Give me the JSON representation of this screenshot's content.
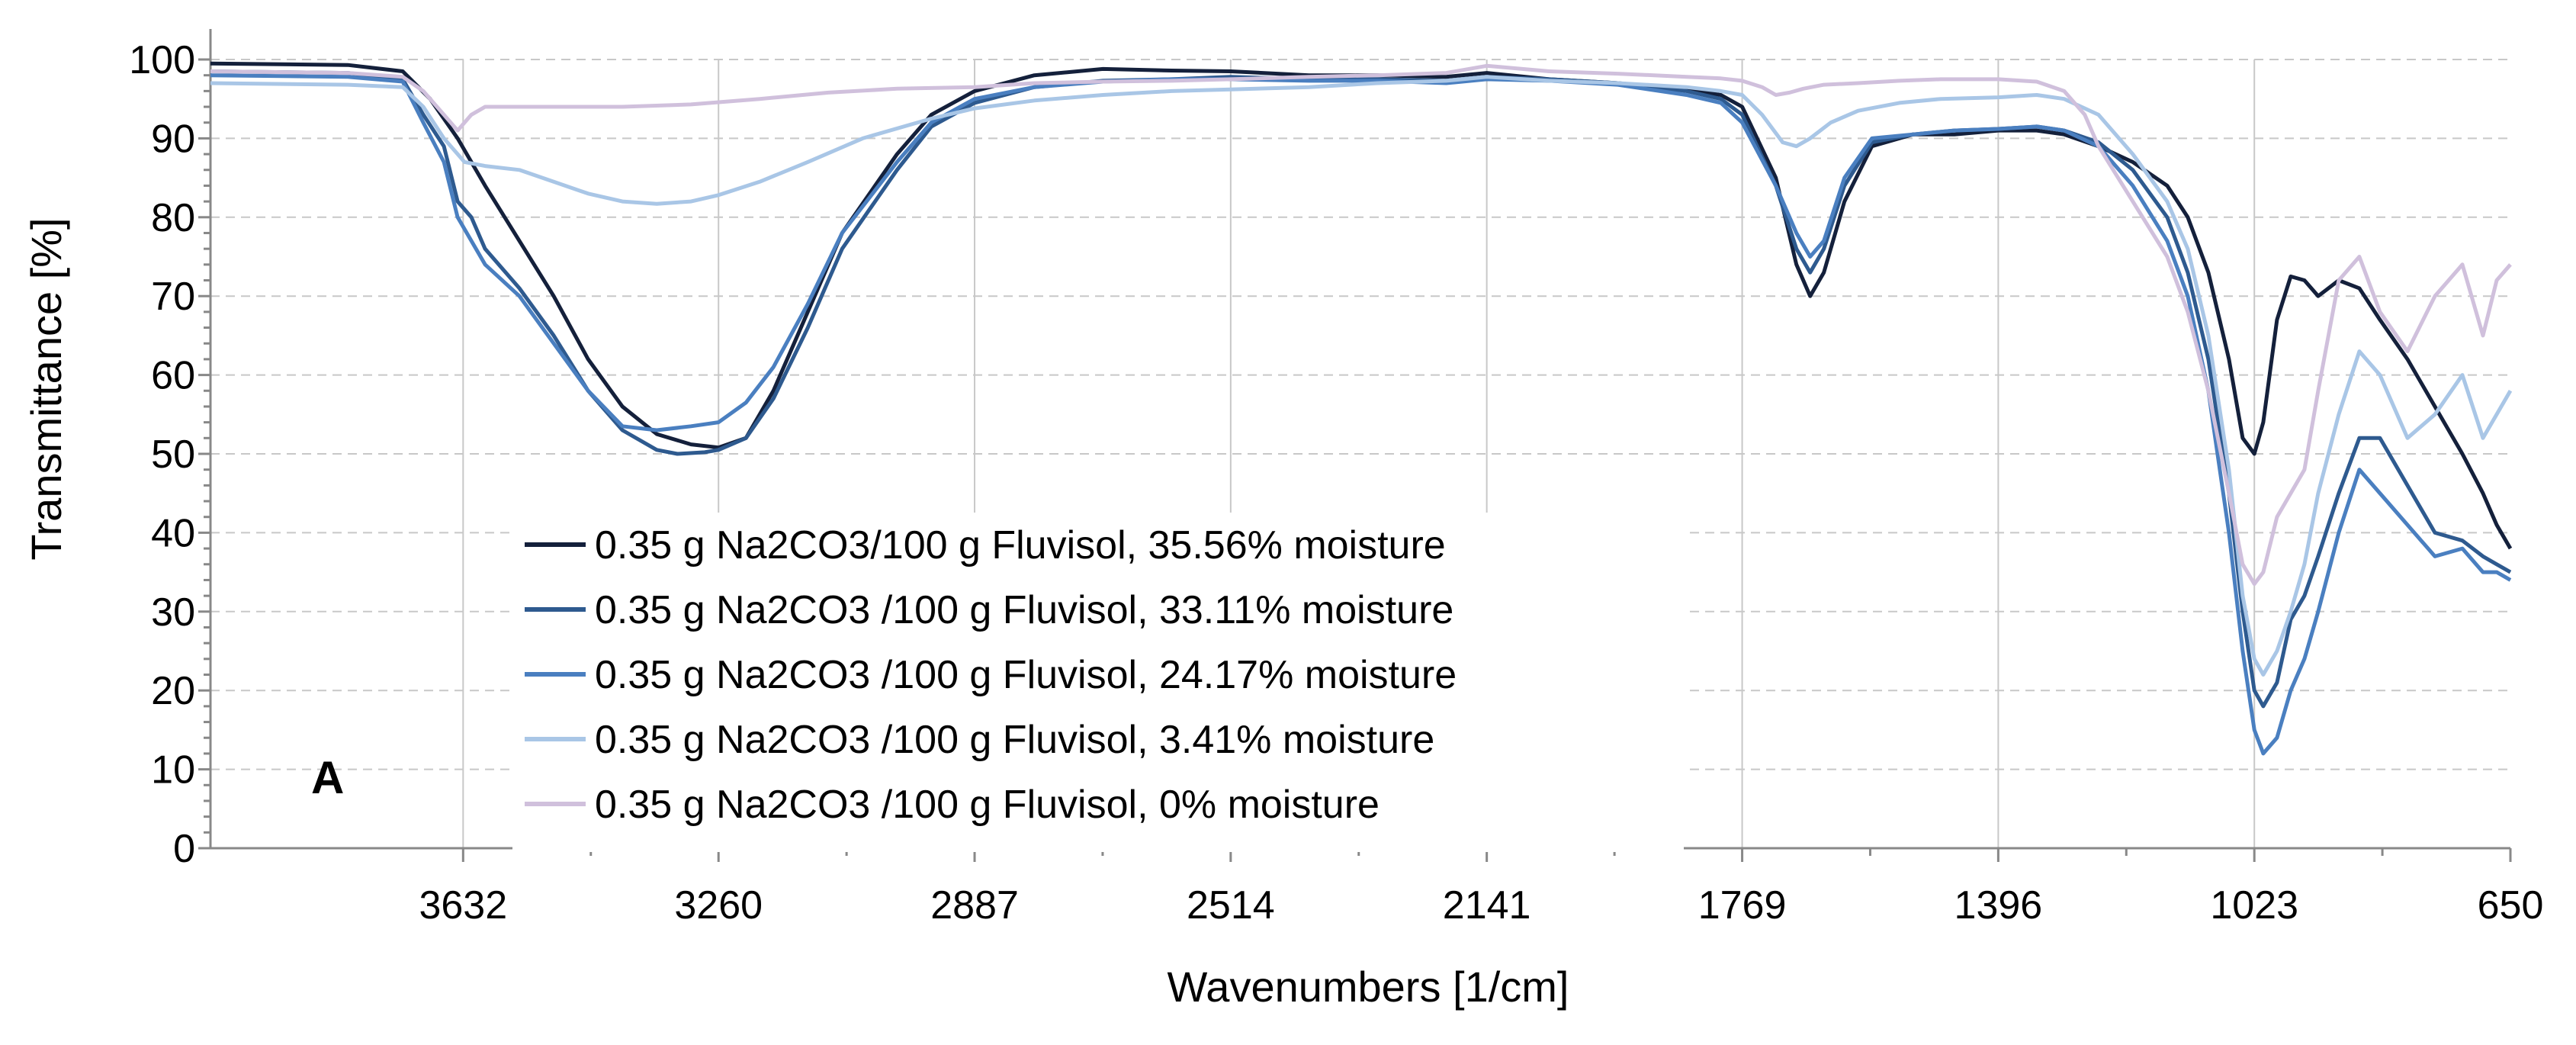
{
  "chart_data": {
    "type": "line",
    "panel_label": "A",
    "xlabel": "Wavenumbers [1/cm]",
    "ylabel": "Transmittance [%]",
    "xlim": [
      4000,
      650
    ],
    "x_reversed": true,
    "ylim": [
      0,
      100
    ],
    "x_ticks": [
      3632,
      3260,
      2887,
      2514,
      2141,
      1769,
      1396,
      1023,
      650
    ],
    "x_tick_labels": [
      "3632",
      "3260",
      "2887",
      "2514",
      "2141",
      "1769",
      "1396",
      "1023",
      "650"
    ],
    "y_ticks": [
      0,
      10,
      20,
      30,
      40,
      50,
      60,
      70,
      80,
      90,
      100
    ],
    "y_tick_labels": [
      "0",
      "10",
      "20",
      "30",
      "40",
      "50",
      "60",
      "70",
      "80",
      "90",
      "100"
    ],
    "grid": true,
    "legend_position": "center-left",
    "series": [
      {
        "name": "0.35 g Na2CO3/100 g Fluvisol, 35.56% moisture",
        "color": "#14203b",
        "x": [
          4000,
          3800,
          3720,
          3680,
          3640,
          3600,
          3550,
          3500,
          3450,
          3400,
          3350,
          3300,
          3260,
          3220,
          3180,
          3130,
          3080,
          3000,
          2950,
          2887,
          2800,
          2700,
          2600,
          2514,
          2400,
          2300,
          2200,
          2141,
          2050,
          1950,
          1850,
          1800,
          1769,
          1720,
          1690,
          1670,
          1650,
          1620,
          1580,
          1520,
          1460,
          1396,
          1340,
          1300,
          1250,
          1200,
          1150,
          1120,
          1090,
          1060,
          1040,
          1023,
          1010,
          990,
          970,
          950,
          930,
          900,
          870,
          840,
          800,
          760,
          720,
          690,
          670,
          650
        ],
        "y": [
          99.5,
          99.3,
          98.5,
          95,
          90,
          84,
          77,
          70,
          62,
          56,
          52.5,
          51.2,
          50.8,
          52,
          58,
          68,
          78,
          88,
          93,
          96,
          98,
          98.8,
          98.6,
          98.5,
          98,
          98,
          97.8,
          98.3,
          97.5,
          97,
          96.2,
          95.5,
          94,
          85,
          74,
          70,
          73,
          82,
          89,
          90.5,
          90.5,
          91,
          91,
          90.5,
          89,
          87,
          84,
          80,
          73,
          62,
          52,
          50,
          54,
          67,
          72.5,
          72,
          70,
          72,
          71,
          67,
          62,
          56,
          50,
          45,
          41,
          38
        ]
      },
      {
        "name": "0.35 g Na2CO3 /100 g Fluvisol, 33.11% moisture",
        "color": "#2e5a8f",
        "x": [
          4000,
          3800,
          3720,
          3690,
          3660,
          3640,
          3620,
          3600,
          3550,
          3500,
          3450,
          3400,
          3350,
          3320,
          3280,
          3260,
          3220,
          3180,
          3130,
          3080,
          3000,
          2950,
          2887,
          2800,
          2700,
          2600,
          2514,
          2400,
          2300,
          2200,
          2141,
          2050,
          1950,
          1850,
          1800,
          1769,
          1720,
          1690,
          1670,
          1650,
          1620,
          1580,
          1520,
          1460,
          1396,
          1340,
          1300,
          1250,
          1200,
          1150,
          1120,
          1090,
          1060,
          1040,
          1023,
          1010,
          990,
          970,
          950,
          930,
          900,
          870,
          840,
          800,
          760,
          720,
          690,
          670,
          650
        ],
        "y": [
          98.5,
          98.3,
          97.5,
          93,
          89,
          82,
          80,
          76,
          71,
          65,
          58,
          53,
          50.5,
          50,
          50.2,
          50.5,
          52,
          57,
          66,
          76,
          86,
          91.5,
          94.5,
          96.5,
          97.3,
          97.5,
          97.8,
          97.5,
          97.5,
          97.3,
          97.8,
          97.5,
          97,
          96,
          95,
          93,
          84,
          76,
          73,
          76,
          84,
          89.5,
          90.5,
          91,
          91.2,
          91.5,
          91,
          89.5,
          86,
          80,
          73,
          62,
          45,
          30,
          20,
          18,
          21,
          29,
          32,
          37,
          45,
          52,
          52,
          46,
          40,
          39,
          37,
          36,
          35
        ]
      },
      {
        "name": "0.35 g Na2CO3 /100 g Fluvisol, 24.17% moisture",
        "color": "#4a7fc0",
        "x": [
          4000,
          3800,
          3720,
          3690,
          3660,
          3640,
          3620,
          3600,
          3550,
          3500,
          3450,
          3400,
          3350,
          3300,
          3260,
          3220,
          3180,
          3130,
          3080,
          3000,
          2950,
          2887,
          2800,
          2700,
          2600,
          2514,
          2400,
          2300,
          2200,
          2141,
          2050,
          1950,
          1850,
          1800,
          1769,
          1720,
          1690,
          1670,
          1650,
          1620,
          1580,
          1520,
          1460,
          1396,
          1340,
          1300,
          1250,
          1200,
          1150,
          1120,
          1090,
          1060,
          1040,
          1023,
          1010,
          990,
          970,
          950,
          930,
          900,
          870,
          840,
          800,
          760,
          720,
          690,
          670,
          650
        ],
        "y": [
          98,
          97.8,
          97.2,
          92,
          87,
          80,
          77,
          74,
          70,
          64,
          58,
          53.5,
          53,
          53.5,
          54,
          56.5,
          61,
          69,
          78,
          87,
          92,
          95,
          96.5,
          97.2,
          97.5,
          97.5,
          97.3,
          97.3,
          97,
          97.5,
          97.3,
          96.8,
          95.5,
          94.5,
          92,
          84,
          78,
          75,
          77,
          85,
          90,
          90.5,
          91,
          91.2,
          91.5,
          91,
          89,
          84,
          77,
          70,
          58,
          40,
          25,
          15,
          12,
          14,
          20,
          24,
          30,
          40,
          48,
          45,
          41,
          37,
          38,
          35,
          35,
          34
        ]
      },
      {
        "name": "0.35 g Na2CO3 /100 g Fluvisol, 3.41% moisture",
        "color": "#a9c6e6",
        "x": [
          4000,
          3800,
          3720,
          3690,
          3660,
          3630,
          3600,
          3550,
          3500,
          3450,
          3400,
          3350,
          3300,
          3260,
          3200,
          3130,
          3050,
          2950,
          2887,
          2800,
          2700,
          2600,
          2514,
          2400,
          2300,
          2200,
          2141,
          2050,
          1950,
          1850,
          1800,
          1769,
          1740,
          1710,
          1690,
          1670,
          1640,
          1600,
          1540,
          1480,
          1396,
          1340,
          1300,
          1250,
          1200,
          1150,
          1120,
          1090,
          1060,
          1040,
          1023,
          1010,
          990,
          970,
          950,
          930,
          900,
          870,
          840,
          800,
          760,
          720,
          690,
          670,
          650
        ],
        "y": [
          97,
          96.8,
          96.5,
          94,
          90,
          87,
          86.5,
          86,
          84.5,
          83,
          82,
          81.7,
          82,
          82.8,
          84.5,
          87,
          90,
          92.5,
          93.8,
          94.8,
          95.5,
          96,
          96.2,
          96.5,
          97,
          97.3,
          97.8,
          97.3,
          97,
          96.5,
          96,
          95.5,
          93,
          89.5,
          89,
          90,
          92,
          93.5,
          94.5,
          95,
          95.2,
          95.5,
          95,
          93,
          88,
          82,
          76,
          65,
          48,
          32,
          24,
          22,
          25,
          30,
          36,
          45,
          55,
          63,
          60,
          52,
          55,
          60,
          52,
          55,
          58
        ]
      },
      {
        "name": "0.35 g Na2CO3 /100 g Fluvisol, 0% moisture",
        "color": "#d0c0dc",
        "x": [
          4000,
          3800,
          3720,
          3690,
          3660,
          3640,
          3620,
          3600,
          3550,
          3500,
          3400,
          3300,
          3200,
          3100,
          3000,
          2887,
          2800,
          2700,
          2600,
          2514,
          2400,
          2300,
          2200,
          2141,
          2050,
          1950,
          1850,
          1800,
          1769,
          1740,
          1720,
          1700,
          1680,
          1650,
          1600,
          1540,
          1480,
          1396,
          1340,
          1300,
          1270,
          1250,
          1200,
          1150,
          1120,
          1090,
          1060,
          1040,
          1023,
          1010,
          990,
          970,
          950,
          930,
          900,
          870,
          840,
          800,
          760,
          720,
          690,
          670,
          650
        ],
        "y": [
          98.5,
          98.3,
          97.8,
          96,
          93,
          91,
          93,
          94,
          94,
          94,
          94,
          94.3,
          95,
          95.8,
          96.3,
          96.5,
          97,
          97.2,
          97.3,
          97.5,
          97.8,
          98,
          98.3,
          99.2,
          98.5,
          98.2,
          97.8,
          97.6,
          97.3,
          96.5,
          95.5,
          95.8,
          96.3,
          96.8,
          97,
          97.3,
          97.5,
          97.5,
          97.2,
          96,
          93,
          89,
          82,
          75,
          68,
          58,
          45,
          36,
          33.5,
          35,
          42,
          45,
          48,
          58,
          72,
          75,
          68,
          63,
          70,
          74,
          65,
          72,
          74
        ]
      }
    ]
  }
}
